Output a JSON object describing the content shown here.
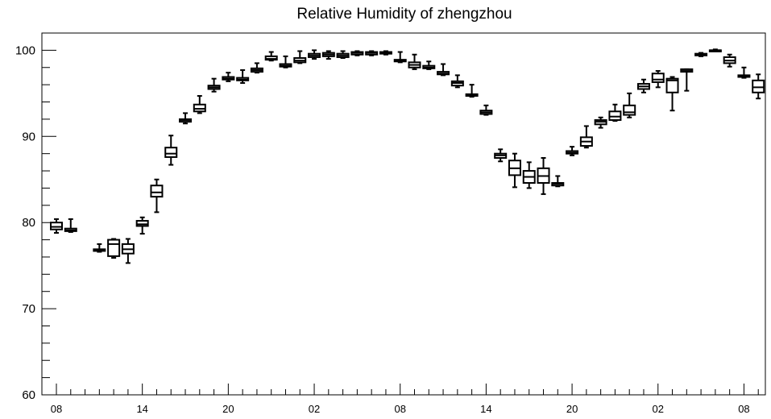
{
  "chart_data": {
    "type": "box",
    "title": "Relative Humidity of zhengzhou",
    "xlabel": "",
    "ylabel": "",
    "ylim": [
      60,
      102
    ],
    "yticks": [
      60,
      70,
      80,
      90,
      100
    ],
    "x_tick_labels": [
      "08",
      "14",
      "20",
      "02",
      "08",
      "14",
      "20",
      "02",
      "08"
    ],
    "x_tick_label_steps": [
      0,
      6,
      12,
      18,
      24,
      30,
      36,
      42,
      48
    ],
    "grid": false,
    "series": [
      {
        "step": 0,
        "min": 78.8,
        "q1": 79.2,
        "median": 79.5,
        "q3": 80.0,
        "max": 80.4
      },
      {
        "step": 1,
        "min": 78.9,
        "q1": 79.0,
        "median": 79.1,
        "q3": 79.3,
        "max": 80.4
      },
      {
        "step": 3,
        "min": 76.6,
        "q1": 76.7,
        "median": 76.8,
        "q3": 76.9,
        "max": 77.5
      },
      {
        "step": 4,
        "min": 75.9,
        "q1": 76.1,
        "median": 77.5,
        "q3": 78.0,
        "max": 78.1
      },
      {
        "step": 5,
        "min": 75.3,
        "q1": 76.4,
        "median": 76.9,
        "q3": 77.5,
        "max": 78.1
      },
      {
        "step": 6,
        "min": 78.7,
        "q1": 79.6,
        "median": 79.8,
        "q3": 80.2,
        "max": 80.6
      },
      {
        "step": 7,
        "min": 81.2,
        "q1": 83.0,
        "median": 83.5,
        "q3": 84.3,
        "max": 85.0
      },
      {
        "step": 8,
        "min": 86.7,
        "q1": 87.6,
        "median": 88.0,
        "q3": 88.7,
        "max": 90.1
      },
      {
        "step": 9,
        "min": 91.5,
        "q1": 91.7,
        "median": 91.9,
        "q3": 92.0,
        "max": 92.7
      },
      {
        "step": 10,
        "min": 92.7,
        "q1": 92.9,
        "median": 93.2,
        "q3": 93.7,
        "max": 94.7
      },
      {
        "step": 11,
        "min": 95.2,
        "q1": 95.5,
        "median": 95.7,
        "q3": 95.9,
        "max": 96.7
      },
      {
        "step": 12,
        "min": 96.4,
        "q1": 96.6,
        "median": 96.7,
        "q3": 96.9,
        "max": 97.4
      },
      {
        "step": 13,
        "min": 96.2,
        "q1": 96.5,
        "median": 96.6,
        "q3": 96.8,
        "max": 97.7
      },
      {
        "step": 14,
        "min": 97.4,
        "q1": 97.5,
        "median": 97.7,
        "q3": 97.9,
        "max": 98.5
      },
      {
        "step": 15,
        "min": 98.8,
        "q1": 98.9,
        "median": 99.0,
        "q3": 99.3,
        "max": 99.8
      },
      {
        "step": 16,
        "min": 98.0,
        "q1": 98.1,
        "median": 98.2,
        "q3": 98.4,
        "max": 99.3
      },
      {
        "step": 17,
        "min": 98.5,
        "q1": 98.6,
        "median": 98.8,
        "q3": 99.1,
        "max": 99.9
      },
      {
        "step": 18,
        "min": 99.0,
        "q1": 99.2,
        "median": 99.4,
        "q3": 99.6,
        "max": 100.0
      },
      {
        "step": 19,
        "min": 99.0,
        "q1": 99.3,
        "median": 99.5,
        "q3": 99.7,
        "max": 99.9
      },
      {
        "step": 20,
        "min": 99.1,
        "q1": 99.2,
        "median": 99.4,
        "q3": 99.6,
        "max": 99.9
      },
      {
        "step": 21,
        "min": 99.4,
        "q1": 99.5,
        "median": 99.7,
        "q3": 99.8,
        "max": 99.9
      },
      {
        "step": 22,
        "min": 99.4,
        "q1": 99.5,
        "median": 99.7,
        "q3": 99.8,
        "max": 99.9
      },
      {
        "step": 23,
        "min": 99.5,
        "q1": 99.6,
        "median": 99.7,
        "q3": 99.8,
        "max": 99.9
      },
      {
        "step": 24,
        "min": 98.6,
        "q1": 98.7,
        "median": 98.8,
        "q3": 98.9,
        "max": 99.8
      },
      {
        "step": 25,
        "min": 97.8,
        "q1": 98.0,
        "median": 98.3,
        "q3": 98.6,
        "max": 99.5
      },
      {
        "step": 26,
        "min": 97.8,
        "q1": 97.9,
        "median": 98.0,
        "q3": 98.2,
        "max": 98.7
      },
      {
        "step": 27,
        "min": 97.1,
        "q1": 97.2,
        "median": 97.3,
        "q3": 97.5,
        "max": 98.4
      },
      {
        "step": 28,
        "min": 95.7,
        "q1": 95.9,
        "median": 96.2,
        "q3": 96.4,
        "max": 97.1
      },
      {
        "step": 29,
        "min": 94.6,
        "q1": 94.7,
        "median": 94.8,
        "q3": 94.9,
        "max": 96.0
      },
      {
        "step": 30,
        "min": 92.5,
        "q1": 92.6,
        "median": 92.8,
        "q3": 93.0,
        "max": 93.6
      },
      {
        "step": 31,
        "min": 87.1,
        "q1": 87.5,
        "median": 87.8,
        "q3": 88.0,
        "max": 88.5
      },
      {
        "step": 32,
        "min": 84.1,
        "q1": 85.5,
        "median": 86.3,
        "q3": 87.2,
        "max": 88.0
      },
      {
        "step": 33,
        "min": 84.0,
        "q1": 84.6,
        "median": 85.3,
        "q3": 86.0,
        "max": 87.0
      },
      {
        "step": 34,
        "min": 83.3,
        "q1": 84.6,
        "median": 85.4,
        "q3": 86.3,
        "max": 87.5
      },
      {
        "step": 35,
        "min": 84.2,
        "q1": 84.3,
        "median": 84.5,
        "q3": 84.6,
        "max": 85.4
      },
      {
        "step": 36,
        "min": 87.8,
        "q1": 88.0,
        "median": 88.1,
        "q3": 88.3,
        "max": 88.8
      },
      {
        "step": 37,
        "min": 88.7,
        "q1": 88.9,
        "median": 89.4,
        "q3": 89.9,
        "max": 91.2
      },
      {
        "step": 38,
        "min": 91.0,
        "q1": 91.4,
        "median": 91.7,
        "q3": 91.9,
        "max": 92.2
      },
      {
        "step": 39,
        "min": 91.8,
        "q1": 91.9,
        "median": 92.3,
        "q3": 92.9,
        "max": 93.7
      },
      {
        "step": 40,
        "min": 92.2,
        "q1": 92.5,
        "median": 92.8,
        "q3": 93.6,
        "max": 95.0
      },
      {
        "step": 41,
        "min": 95.1,
        "q1": 95.5,
        "median": 95.8,
        "q3": 96.1,
        "max": 96.6
      },
      {
        "step": 42,
        "min": 95.7,
        "q1": 96.3,
        "median": 96.6,
        "q3": 97.3,
        "max": 97.6
      },
      {
        "step": 43,
        "min": 93.0,
        "q1": 95.1,
        "median": 96.5,
        "q3": 96.7,
        "max": 96.9
      },
      {
        "step": 44,
        "min": 95.3,
        "q1": 97.5,
        "median": 97.6,
        "q3": 97.8,
        "max": 97.8
      },
      {
        "step": 45,
        "min": 99.3,
        "q1": 99.4,
        "median": 99.5,
        "q3": 99.6,
        "max": 99.7
      },
      {
        "step": 46,
        "min": 99.9,
        "q1": 100.0,
        "median": 100.0,
        "q3": 100.0,
        "max": 100.1
      },
      {
        "step": 47,
        "min": 98.1,
        "q1": 98.5,
        "median": 98.8,
        "q3": 99.2,
        "max": 99.5
      },
      {
        "step": 48,
        "min": 96.8,
        "q1": 96.9,
        "median": 97.0,
        "q3": 97.1,
        "max": 98.0
      },
      {
        "step": 49,
        "min": 94.4,
        "q1": 95.1,
        "median": 95.7,
        "q3": 96.5,
        "max": 97.2
      }
    ]
  }
}
